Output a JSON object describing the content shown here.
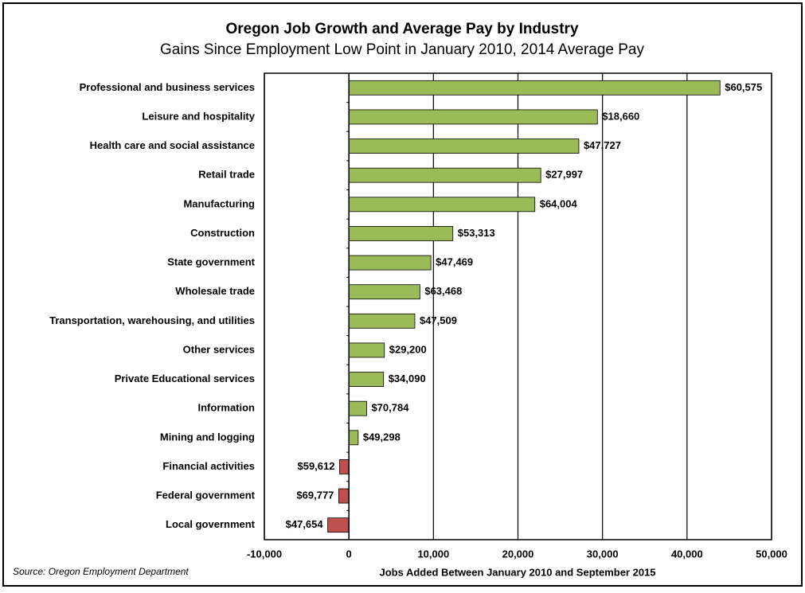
{
  "chart_data": {
    "type": "bar",
    "orientation": "horizontal",
    "title": "Oregon Job Growth and Average Pay by Industry",
    "subtitle": "Gains Since Employment Low Point in January 2010, 2014 Average Pay",
    "x_label": "Jobs Added Between January 2010 and September 2015",
    "source": "Source: Oregon Employment Department",
    "categories": [
      "Professional and business services",
      "Leisure and hospitality",
      "Health care and social assistance",
      "Retail trade",
      "Manufacturing",
      "Construction",
      "State government",
      "Wholesale trade",
      "Transportation, warehousing, and utilities",
      "Other services",
      "Private Educational services",
      "Information",
      "Mining and logging",
      "Financial activities",
      "Federal government",
      "Local government"
    ],
    "values": [
      43900,
      29400,
      27200,
      22700,
      22000,
      12300,
      9700,
      8400,
      7800,
      4200,
      4100,
      2100,
      1100,
      -1100,
      -1200,
      -2500
    ],
    "average_pay_labels": [
      "$60,575",
      "$18,660",
      "$47,727",
      "$27,997",
      "$64,004",
      "$53,313",
      "$47,469",
      "$63,468",
      "$47,509",
      "$29,200",
      "$34,090",
      "$70,784",
      "$49,298",
      "$59,612",
      "$69,777",
      "$47,654"
    ],
    "positive_color": "#9bbb59",
    "negative_color": "#c0504d",
    "xlim": [
      -10000,
      50000
    ],
    "xticks": [
      {
        "value": -10000,
        "label": "-10,000"
      },
      0,
      {
        "value": 10000,
        "label": "10,000"
      },
      {
        "value": 20000,
        "label": "20,000"
      },
      {
        "value": 30000,
        "label": "30,000"
      },
      {
        "value": 40000,
        "label": "40,000"
      },
      {
        "value": 50000,
        "label": "50,000"
      }
    ],
    "grid": true
  }
}
